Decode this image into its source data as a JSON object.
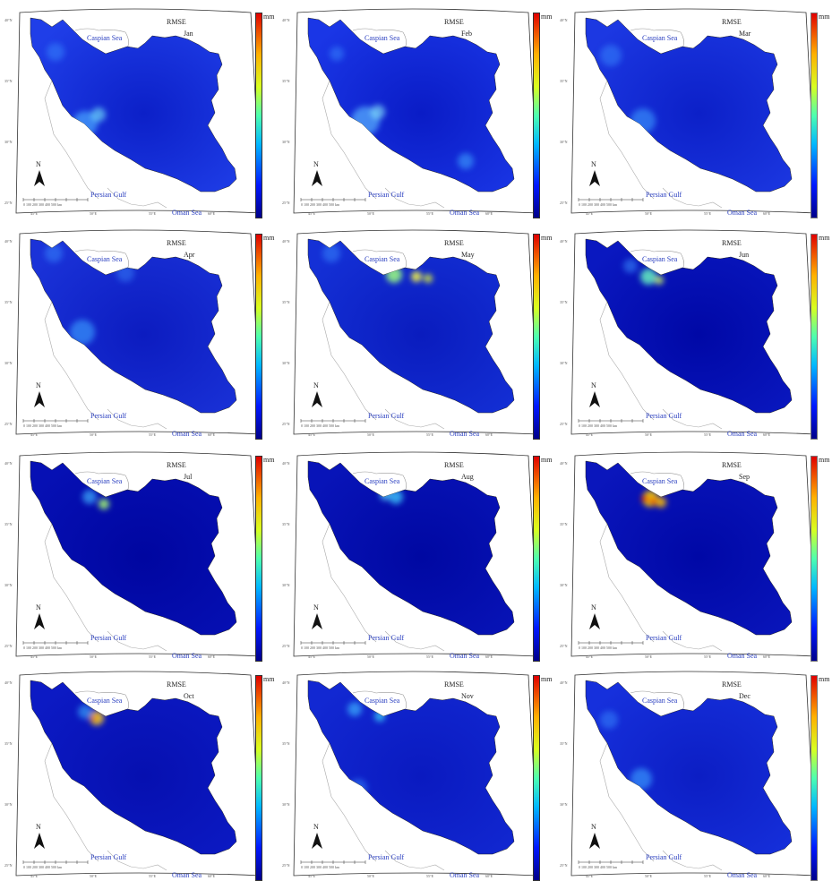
{
  "colorbar_unit": "mm",
  "metric_label": "RMSE",
  "labels": {
    "caspian": "Caspian Sea",
    "persian": "Persian Gulf",
    "oman": "Oman Sea",
    "north": "N"
  },
  "scalebar_text": "0  100  200  300  400  500 km",
  "lat_ticks": [
    "40°N",
    "35°N",
    "30°N",
    "25°N"
  ],
  "lon_ticks": [
    "45°E",
    "50°E",
    "55°E",
    "60°E"
  ],
  "panels": [
    {
      "month": "Jan"
    },
    {
      "month": "Feb"
    },
    {
      "month": "Mar"
    },
    {
      "month": "Apr"
    },
    {
      "month": "May"
    },
    {
      "month": "Jun"
    },
    {
      "month": "Jul"
    },
    {
      "month": "Aug"
    },
    {
      "month": "Sep"
    },
    {
      "month": "Oct"
    },
    {
      "month": "Nov"
    },
    {
      "month": "Dec"
    }
  ],
  "colors": {
    "low": "#00008a",
    "base_jan": "#1a2fe0",
    "base_summer": "#00009a",
    "hot": "#e00000",
    "label_blue": "#2a3fc0"
  }
}
